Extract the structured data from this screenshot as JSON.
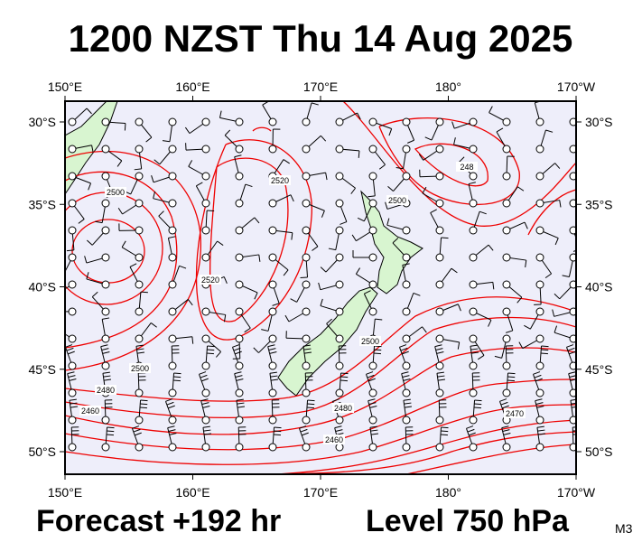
{
  "header": {
    "title": "1200 NZST Thu 14 Aug 2025"
  },
  "map": {
    "lon_ticks": [
      {
        "value": 150,
        "label": "150°E"
      },
      {
        "value": 160,
        "label": "160°E"
      },
      {
        "value": 170,
        "label": "170°E"
      },
      {
        "value": 180,
        "label": "180°"
      },
      {
        "value": 190,
        "label": "170°W"
      }
    ],
    "lat_ticks": [
      {
        "value": 30,
        "label": "30°S"
      },
      {
        "value": 35,
        "label": "35°S"
      },
      {
        "value": 40,
        "label": "40°S"
      },
      {
        "value": 45,
        "label": "45°S"
      },
      {
        "value": 50,
        "label": "50°S"
      }
    ],
    "contour_labels": [
      "2500",
      "2520",
      "2500",
      "248",
      "2520",
      "2500",
      "2480",
      "2460",
      "2500",
      "2480",
      "2460",
      "2470"
    ]
  },
  "footer": {
    "forecast": "Forecast +192 hr",
    "level": "Level 750 hPa",
    "model": "M3"
  }
}
